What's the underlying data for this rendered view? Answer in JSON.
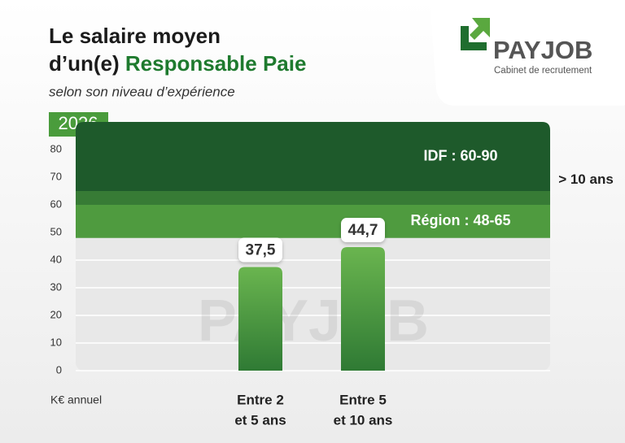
{
  "header": {
    "title_line1": "Le salaire moyen",
    "title_line2_prefix": "d’un(e)",
    "title_line2_highlight": "Responsable Paie",
    "subtitle": "selon son niveau d’expérience",
    "logo": "PAYJOB",
    "logo_tagline": "Cabinet de recrutement"
  },
  "chart_data": {
    "type": "bar",
    "year": "2026",
    "y_axis_label": "K€ annuel",
    "categories": [
      [
        "Entre 2",
        "et 5 ans"
      ],
      [
        "Entre 5",
        "et 10 ans"
      ],
      [
        "> 10 ans"
      ]
    ],
    "values": [
      37.5,
      44.7,
      null
    ],
    "value_labels": [
      "37,5",
      "44,7",
      null
    ],
    "color": "#4c9c3e",
    "ylim": [
      0,
      90
    ],
    "yticks": [
      0,
      10,
      20,
      30,
      40,
      50,
      60,
      70,
      80
    ],
    "grid": true,
    "ranges": [
      {
        "label": "IDF : 60-90",
        "low": 60,
        "high": 90,
        "color": "#1e5a2b"
      },
      {
        "label": "Région : 48-65",
        "low": 48,
        "high": 65,
        "color": "#4f9b3f"
      }
    ]
  }
}
